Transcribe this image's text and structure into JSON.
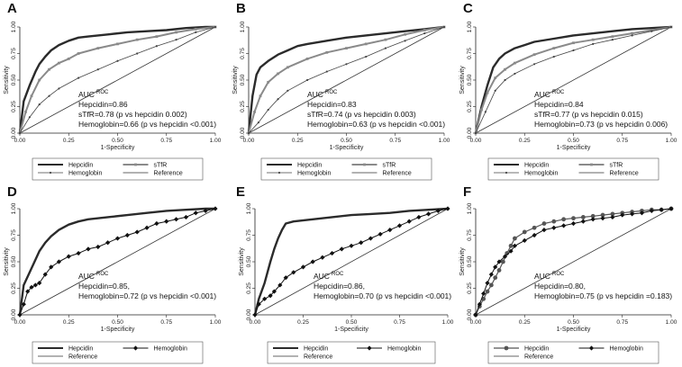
{
  "chart_data": [
    {
      "letter": "A",
      "type": "line",
      "xlabel": "1-Specificity",
      "ylabel": "Sensitivity",
      "xlim": [
        0,
        1
      ],
      "ylim": [
        0,
        1
      ],
      "xticks": [
        "0.00",
        "0.25",
        "0.50",
        "0.75",
        "1.00"
      ],
      "yticks": [
        "0.00",
        "0.25",
        "0.50",
        "0.75",
        "1.00"
      ],
      "auc_title": "AUC",
      "auc_sup": "ROC",
      "auc_lines": [
        "Hepcidin=0.86",
        "sTfR=0.78 (p vs hepcidin 0.002)",
        "Hemoglobin=0.66 (p vs hepcidin <0.001)"
      ],
      "legend": [
        "Hepcidin",
        "sTfR",
        "Hemoglobin",
        "Reference"
      ],
      "series": [
        {
          "name": "Hepcidin",
          "style": "dark",
          "x": [
            0,
            0.02,
            0.05,
            0.08,
            0.1,
            0.13,
            0.16,
            0.2,
            0.25,
            0.3,
            0.35,
            0.45,
            0.55,
            0.65,
            0.75,
            0.85,
            0.95,
            1
          ],
          "y": [
            0,
            0.3,
            0.45,
            0.58,
            0.65,
            0.72,
            0.78,
            0.83,
            0.87,
            0.9,
            0.91,
            0.93,
            0.95,
            0.96,
            0.97,
            0.99,
            1,
            1
          ]
        },
        {
          "name": "sTfR",
          "style": "mid",
          "x": [
            0,
            0.03,
            0.06,
            0.1,
            0.15,
            0.2,
            0.25,
            0.3,
            0.4,
            0.5,
            0.6,
            0.7,
            0.8,
            0.9,
            1
          ],
          "y": [
            0,
            0.2,
            0.35,
            0.5,
            0.6,
            0.66,
            0.7,
            0.75,
            0.8,
            0.84,
            0.88,
            0.91,
            0.95,
            0.98,
            1
          ]
        },
        {
          "name": "Hemoglobin",
          "style": "thin",
          "x": [
            0,
            0.05,
            0.1,
            0.15,
            0.2,
            0.3,
            0.4,
            0.5,
            0.6,
            0.7,
            0.8,
            0.9,
            1
          ],
          "y": [
            0,
            0.15,
            0.27,
            0.35,
            0.42,
            0.52,
            0.6,
            0.68,
            0.75,
            0.82,
            0.88,
            0.95,
            1
          ]
        },
        {
          "name": "Reference",
          "style": "ref",
          "x": [
            0,
            1
          ],
          "y": [
            0,
            1
          ]
        }
      ]
    },
    {
      "letter": "B",
      "type": "line",
      "xlabel": "1-Specificity",
      "ylabel": "Sensitivity",
      "xlim": [
        0,
        1
      ],
      "ylim": [
        0,
        1
      ],
      "xticks": [
        "0.00",
        "0.25",
        "0.50",
        "0.75",
        "1.00"
      ],
      "yticks": [
        "0.00",
        "0.25",
        "0.50",
        "0.75",
        "1.00"
      ],
      "auc_title": "AUC",
      "auc_sup": "ROC",
      "auc_lines": [
        "Hepcidin=0.83",
        "sTfR=0.74 (p vs hepcidin 0.003)",
        "Hemoglobin=0.63 (p vs hepcidin <0.001)"
      ],
      "legend": [
        "Hepcidin",
        "sTfR",
        "Hemoglobin",
        "Reference"
      ],
      "series": [
        {
          "name": "Hepcidin",
          "style": "dark",
          "x": [
            0,
            0.02,
            0.04,
            0.06,
            0.1,
            0.15,
            0.2,
            0.25,
            0.3,
            0.4,
            0.5,
            0.6,
            0.7,
            0.8,
            0.9,
            1
          ],
          "y": [
            0,
            0.35,
            0.55,
            0.62,
            0.68,
            0.74,
            0.78,
            0.82,
            0.84,
            0.87,
            0.9,
            0.92,
            0.94,
            0.96,
            0.98,
            1
          ]
        },
        {
          "name": "sTfR",
          "style": "mid",
          "x": [
            0,
            0.03,
            0.06,
            0.1,
            0.15,
            0.2,
            0.3,
            0.4,
            0.5,
            0.6,
            0.7,
            0.8,
            0.9,
            1
          ],
          "y": [
            0,
            0.2,
            0.35,
            0.48,
            0.56,
            0.62,
            0.7,
            0.76,
            0.8,
            0.84,
            0.88,
            0.93,
            0.97,
            1
          ]
        },
        {
          "name": "Hemoglobin",
          "style": "thin",
          "x": [
            0,
            0.05,
            0.1,
            0.15,
            0.2,
            0.3,
            0.4,
            0.5,
            0.6,
            0.7,
            0.8,
            0.9,
            1
          ],
          "y": [
            0,
            0.1,
            0.22,
            0.32,
            0.4,
            0.5,
            0.58,
            0.65,
            0.72,
            0.8,
            0.87,
            0.94,
            1
          ]
        },
        {
          "name": "Reference",
          "style": "ref",
          "x": [
            0,
            1
          ],
          "y": [
            0,
            1
          ]
        }
      ]
    },
    {
      "letter": "C",
      "type": "line",
      "xlabel": "1-Specificity",
      "ylabel": "Sensitivity",
      "xlim": [
        0,
        1
      ],
      "ylim": [
        0,
        1
      ],
      "xticks": [
        "0.00",
        "0.25",
        "0.50",
        "0.75",
        "1.00"
      ],
      "yticks": [
        "0.00",
        "0.25",
        "0.50",
        "0.75",
        "1.00"
      ],
      "auc_title": "AUC",
      "auc_sup": "ROC",
      "auc_lines": [
        "Hepcidin=0.84",
        "sTfR=0.77 (p vs hepcidin 0.015)",
        "Hemoglobin=0.73 (p vs hepcidin 0.006)"
      ],
      "legend": [
        "Hepcidin",
        "sTfR",
        "Hemoglobin",
        "Reference"
      ],
      "series": [
        {
          "name": "Hepcidin",
          "style": "dark",
          "x": [
            0,
            0.03,
            0.06,
            0.09,
            0.12,
            0.15,
            0.2,
            0.25,
            0.3,
            0.4,
            0.5,
            0.6,
            0.7,
            0.8,
            0.9,
            1
          ],
          "y": [
            0,
            0.25,
            0.45,
            0.62,
            0.7,
            0.75,
            0.8,
            0.83,
            0.86,
            0.89,
            0.92,
            0.94,
            0.96,
            0.98,
            0.99,
            1
          ]
        },
        {
          "name": "sTfR",
          "style": "mid",
          "x": [
            0,
            0.03,
            0.06,
            0.1,
            0.15,
            0.2,
            0.3,
            0.4,
            0.5,
            0.6,
            0.7,
            0.8,
            0.9,
            1
          ],
          "y": [
            0,
            0.22,
            0.38,
            0.52,
            0.6,
            0.66,
            0.74,
            0.8,
            0.85,
            0.88,
            0.91,
            0.94,
            0.97,
            1
          ]
        },
        {
          "name": "Hemoglobin",
          "style": "thin",
          "x": [
            0,
            0.05,
            0.1,
            0.15,
            0.2,
            0.3,
            0.4,
            0.5,
            0.6,
            0.7,
            0.8,
            0.9,
            1
          ],
          "y": [
            0,
            0.2,
            0.4,
            0.5,
            0.56,
            0.65,
            0.72,
            0.78,
            0.84,
            0.88,
            0.92,
            0.96,
            1
          ]
        },
        {
          "name": "Reference",
          "style": "ref",
          "x": [
            0,
            1
          ],
          "y": [
            0,
            1
          ]
        }
      ]
    },
    {
      "letter": "D",
      "type": "line",
      "xlabel": "1-Specificity",
      "ylabel": "Sensitivity",
      "xlim": [
        0,
        1
      ],
      "ylim": [
        0,
        1
      ],
      "xticks": [
        "0.00",
        "0.25",
        "0.50",
        "0.75",
        "1.00"
      ],
      "yticks": [
        "0.00",
        "0.25",
        "0.50",
        "0.75",
        "1.00"
      ],
      "auc_title": "AUC",
      "auc_sup": "ROC",
      "auc_lines": [
        "Hepcidin=0.85,",
        "Hemoglobin=0.72 (p vs hepcidin <0.001)"
      ],
      "legend": [
        "Hepcidin",
        "Hemoglobin",
        "Reference"
      ],
      "series": [
        {
          "name": "Hepcidin",
          "style": "dark",
          "x": [
            0,
            0.02,
            0.05,
            0.08,
            0.1,
            0.13,
            0.16,
            0.2,
            0.25,
            0.3,
            0.35,
            0.45,
            0.55,
            0.65,
            0.75,
            0.85,
            0.95,
            1
          ],
          "y": [
            0,
            0.28,
            0.4,
            0.52,
            0.6,
            0.68,
            0.74,
            0.8,
            0.85,
            0.88,
            0.9,
            0.92,
            0.94,
            0.96,
            0.98,
            0.99,
            1,
            1
          ]
        },
        {
          "name": "Hemoglobin",
          "style": "diamond",
          "x": [
            0,
            0.02,
            0.04,
            0.06,
            0.08,
            0.1,
            0.13,
            0.16,
            0.2,
            0.25,
            0.3,
            0.35,
            0.4,
            0.45,
            0.5,
            0.55,
            0.6,
            0.65,
            0.7,
            0.75,
            0.8,
            0.85,
            0.9,
            0.95,
            1
          ],
          "y": [
            0,
            0.1,
            0.22,
            0.26,
            0.28,
            0.3,
            0.38,
            0.45,
            0.5,
            0.55,
            0.58,
            0.62,
            0.64,
            0.68,
            0.72,
            0.75,
            0.78,
            0.82,
            0.86,
            0.88,
            0.9,
            0.92,
            0.96,
            0.98,
            1
          ]
        },
        {
          "name": "Reference",
          "style": "ref",
          "x": [
            0,
            1
          ],
          "y": [
            0,
            1
          ]
        }
      ]
    },
    {
      "letter": "E",
      "type": "line",
      "xlabel": "1-Specificity",
      "ylabel": "Sensitivity",
      "xlim": [
        0,
        1
      ],
      "ylim": [
        0,
        1
      ],
      "xticks": [
        "0.00",
        "0.25",
        "0.50",
        "0.75",
        "1.00"
      ],
      "yticks": [
        "0.00",
        "0.25",
        "0.50",
        "0.75",
        "1.00"
      ],
      "auc_title": "AUC",
      "auc_sup": "ROC",
      "auc_lines": [
        "Hepcidin=0.86,",
        "Hemoglobin=0.70 (p vs hepcidin <0.001)"
      ],
      "legend": [
        "Hepcidin",
        "Hemoglobin",
        "Reference"
      ],
      "series": [
        {
          "name": "Hepcidin",
          "style": "dark",
          "x": [
            0,
            0.02,
            0.05,
            0.08,
            0.1,
            0.12,
            0.14,
            0.16,
            0.2,
            0.3,
            0.4,
            0.5,
            0.6,
            0.7,
            0.8,
            0.9,
            1
          ],
          "y": [
            0,
            0.15,
            0.3,
            0.5,
            0.62,
            0.72,
            0.8,
            0.86,
            0.88,
            0.9,
            0.92,
            0.94,
            0.95,
            0.96,
            0.98,
            0.99,
            1
          ]
        },
        {
          "name": "Hemoglobin",
          "style": "diamond",
          "x": [
            0,
            0.02,
            0.05,
            0.08,
            0.1,
            0.13,
            0.16,
            0.2,
            0.25,
            0.3,
            0.35,
            0.4,
            0.45,
            0.5,
            0.55,
            0.6,
            0.65,
            0.7,
            0.75,
            0.8,
            0.85,
            0.9,
            0.95,
            1
          ],
          "y": [
            0,
            0.1,
            0.15,
            0.18,
            0.22,
            0.28,
            0.35,
            0.4,
            0.45,
            0.5,
            0.54,
            0.58,
            0.62,
            0.65,
            0.68,
            0.72,
            0.76,
            0.8,
            0.84,
            0.88,
            0.92,
            0.95,
            0.98,
            1
          ]
        },
        {
          "name": "Reference",
          "style": "ref",
          "x": [
            0,
            1
          ],
          "y": [
            0,
            1
          ]
        }
      ]
    },
    {
      "letter": "F",
      "type": "line",
      "xlabel": "1-Specificity",
      "ylabel": "Sensitivity",
      "xlim": [
        0,
        1
      ],
      "ylim": [
        0,
        1
      ],
      "xticks": [
        "0.00",
        "0.25",
        "0.50",
        "0.75",
        "1.00"
      ],
      "yticks": [
        "0.00",
        "0.25",
        "0.50",
        "0.75",
        "1.00"
      ],
      "auc_title": "AUC",
      "auc_sup": "ROC",
      "auc_lines": [
        "Hepcidin=0.80,",
        "Hemoglobin=0.75 (p vs hepcidin =0.183)"
      ],
      "legend": [
        "Hepcidin",
        "Hemoglobin",
        "Reference"
      ],
      "series": [
        {
          "name": "Hepcidin",
          "style": "circle",
          "x": [
            0,
            0.02,
            0.04,
            0.06,
            0.08,
            0.1,
            0.12,
            0.14,
            0.16,
            0.18,
            0.2,
            0.25,
            0.3,
            0.35,
            0.4,
            0.45,
            0.5,
            0.55,
            0.6,
            0.65,
            0.7,
            0.75,
            0.8,
            0.85,
            0.9,
            0.95,
            1
          ],
          "y": [
            0,
            0.08,
            0.15,
            0.22,
            0.28,
            0.35,
            0.42,
            0.5,
            0.58,
            0.65,
            0.72,
            0.78,
            0.82,
            0.86,
            0.88,
            0.9,
            0.91,
            0.92,
            0.93,
            0.94,
            0.95,
            0.96,
            0.97,
            0.98,
            0.99,
            0.99,
            1
          ]
        },
        {
          "name": "Hemoglobin",
          "style": "diamond",
          "x": [
            0,
            0.02,
            0.04,
            0.06,
            0.08,
            0.1,
            0.12,
            0.15,
            0.18,
            0.2,
            0.25,
            0.3,
            0.35,
            0.4,
            0.45,
            0.5,
            0.55,
            0.6,
            0.65,
            0.7,
            0.75,
            0.8,
            0.85,
            0.9,
            0.95,
            1
          ],
          "y": [
            0,
            0.1,
            0.2,
            0.3,
            0.38,
            0.45,
            0.5,
            0.55,
            0.6,
            0.65,
            0.7,
            0.75,
            0.8,
            0.82,
            0.84,
            0.86,
            0.88,
            0.9,
            0.91,
            0.92,
            0.94,
            0.95,
            0.96,
            0.98,
            0.99,
            1
          ]
        },
        {
          "name": "Reference",
          "style": "ref",
          "x": [
            0,
            1
          ],
          "y": [
            0,
            1
          ]
        }
      ]
    }
  ]
}
